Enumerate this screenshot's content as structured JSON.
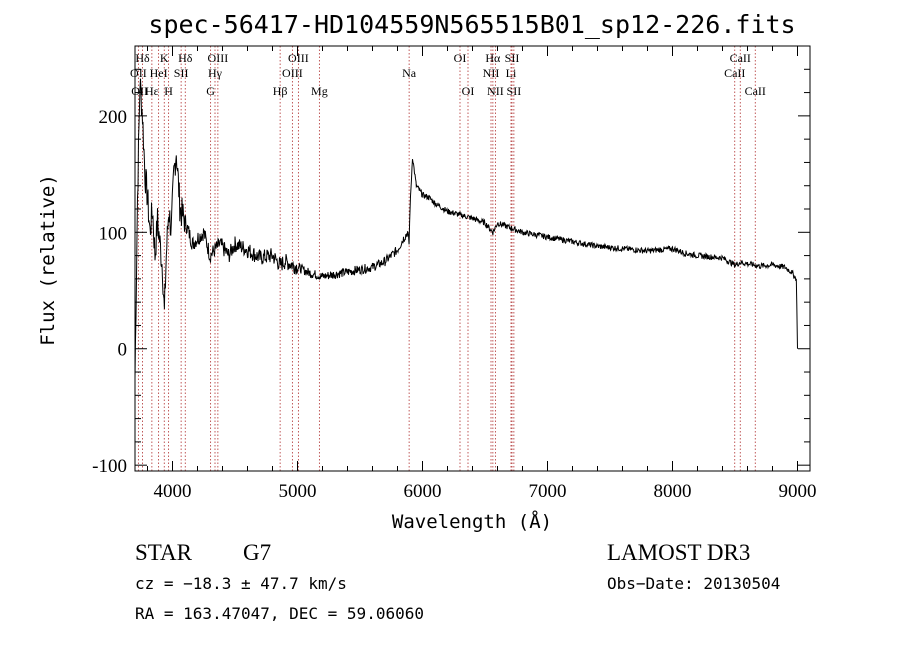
{
  "chart_data": {
    "type": "line",
    "title": "spec-56417-HD104559N565515B01_sp12-226.fits",
    "xlabel": "Wavelength (Å)",
    "ylabel": "Flux (relative)",
    "xlim": [
      3700,
      9100
    ],
    "ylim": [
      -105,
      260
    ],
    "xticks": [
      4000,
      5000,
      6000,
      7000,
      8000,
      9000
    ],
    "yticks": [
      -100,
      0,
      100,
      200
    ],
    "series": [
      {
        "name": "flux",
        "x": [
          3700,
          3720,
          3740,
          3760,
          3780,
          3800,
          3820,
          3840,
          3860,
          3880,
          3900,
          3920,
          3935,
          3950,
          3970,
          3990,
          4010,
          4030,
          4060,
          4100,
          4130,
          4160,
          4200,
          4250,
          4300,
          4340,
          4380,
          4450,
          4500,
          4600,
          4700,
          4800,
          4861,
          4900,
          5000,
          5100,
          5200,
          5300,
          5400,
          5500,
          5600,
          5700,
          5800,
          5850,
          5880,
          5893,
          5900,
          5920,
          5950,
          6000,
          6050,
          6100,
          6200,
          6300,
          6400,
          6500,
          6563,
          6600,
          6700,
          6800,
          6900,
          7000,
          7200,
          7400,
          7600,
          7800,
          8000,
          8100,
          8200,
          8300,
          8400,
          8500,
          8542,
          8600,
          8700,
          8800,
          8900,
          8950,
          8990,
          9000
        ],
        "y": [
          -25,
          130,
          230,
          200,
          150,
          130,
          100,
          120,
          80,
          110,
          90,
          70,
          30,
          80,
          120,
          100,
          150,
          170,
          120,
          110,
          100,
          90,
          95,
          100,
          80,
          85,
          90,
          80,
          90,
          85,
          78,
          80,
          72,
          75,
          70,
          65,
          62,
          64,
          66,
          68,
          70,
          75,
          85,
          95,
          100,
          90,
          120,
          165,
          140,
          132,
          130,
          125,
          118,
          115,
          112,
          108,
          100,
          108,
          104,
          100,
          98,
          96,
          92,
          88,
          86,
          84,
          86,
          82,
          80,
          79,
          78,
          72,
          74,
          73,
          71,
          72,
          70,
          66,
          60,
          0
        ]
      }
    ],
    "line_labels": [
      {
        "name": "H6",
        "wavelength": 3760,
        "text": "Hδ",
        "row": 1
      },
      {
        "name": "OII",
        "wavelength": 3727,
        "text": "OII",
        "row": 2
      },
      {
        "name": "OIII-3",
        "wavelength": 3737,
        "text": "OII",
        "row": 3
      },
      {
        "name": "Heps",
        "wavelength": 3835,
        "text": "Hε",
        "row": 3
      },
      {
        "name": "K",
        "wavelength": 3934,
        "text": "K",
        "row": 1
      },
      {
        "name": "HeI",
        "wavelength": 3889,
        "text": "HeI",
        "row": 2
      },
      {
        "name": "H",
        "wavelength": 3969,
        "text": "H",
        "row": 3
      },
      {
        "name": "Hdelta",
        "wavelength": 4102,
        "text": "Hδ",
        "row": 1
      },
      {
        "name": "SII",
        "wavelength": 4069,
        "text": "SII",
        "row": 2
      },
      {
        "name": "OIII-1",
        "wavelength": 4363,
        "text": "OIII",
        "row": 1
      },
      {
        "name": "Hgamma",
        "wavelength": 4340,
        "text": "Hγ",
        "row": 2
      },
      {
        "name": "G",
        "wavelength": 4305,
        "text": "G",
        "row": 3
      },
      {
        "name": "Hbeta",
        "wavelength": 4861,
        "text": "Hβ",
        "row": 3
      },
      {
        "name": "OIII-2",
        "wavelength": 5007,
        "text": "OIII",
        "row": 1
      },
      {
        "name": "OIII-4",
        "wavelength": 4959,
        "text": "OIII",
        "row": 2
      },
      {
        "name": "Mg",
        "wavelength": 5175,
        "text": "Mg",
        "row": 3
      },
      {
        "name": "Na",
        "wavelength": 5893,
        "text": "Na",
        "row": 2
      },
      {
        "name": "OI-1",
        "wavelength": 6300,
        "text": "OI",
        "row": 1
      },
      {
        "name": "OI-2",
        "wavelength": 6364,
        "text": "OI",
        "row": 3
      },
      {
        "name": "Halpha",
        "wavelength": 6563,
        "text": "Hα",
        "row": 1
      },
      {
        "name": "NII-1",
        "wavelength": 6548,
        "text": "NII",
        "row": 2
      },
      {
        "name": "NII-2",
        "wavelength": 6583,
        "text": "NII",
        "row": 3
      },
      {
        "name": "SII-1",
        "wavelength": 6716,
        "text": "SII",
        "row": 1
      },
      {
        "name": "Li",
        "wavelength": 6708,
        "text": "Li",
        "row": 2
      },
      {
        "name": "SII-2",
        "wavelength": 6731,
        "text": "SII",
        "row": 3
      },
      {
        "name": "CaII-1",
        "wavelength": 8542,
        "text": "CaII",
        "row": 1
      },
      {
        "name": "CaII-2",
        "wavelength": 8498,
        "text": "CaII",
        "row": 2
      },
      {
        "name": "CaII-3",
        "wavelength": 8662,
        "text": "CaII",
        "row": 3
      }
    ],
    "marker_lines": [
      3727,
      3760,
      3835,
      3889,
      3934,
      3969,
      4069,
      4102,
      4305,
      4340,
      4363,
      4861,
      4959,
      5007,
      5175,
      5893,
      6300,
      6364,
      6548,
      6563,
      6583,
      6708,
      6716,
      6731,
      8498,
      8542,
      8662
    ]
  },
  "info": {
    "object_class": "STAR",
    "subclass": "G7",
    "survey": "LAMOST DR3",
    "redshift": "cz = −18.3 ± 47.7 km/s",
    "obs_date": "Obs−Date: 20130504",
    "coords": "RA = 163.47047, DEC =  59.06060"
  },
  "colors": {
    "spectrum": "#000000",
    "marker": "#b03030",
    "axis": "#000000"
  }
}
